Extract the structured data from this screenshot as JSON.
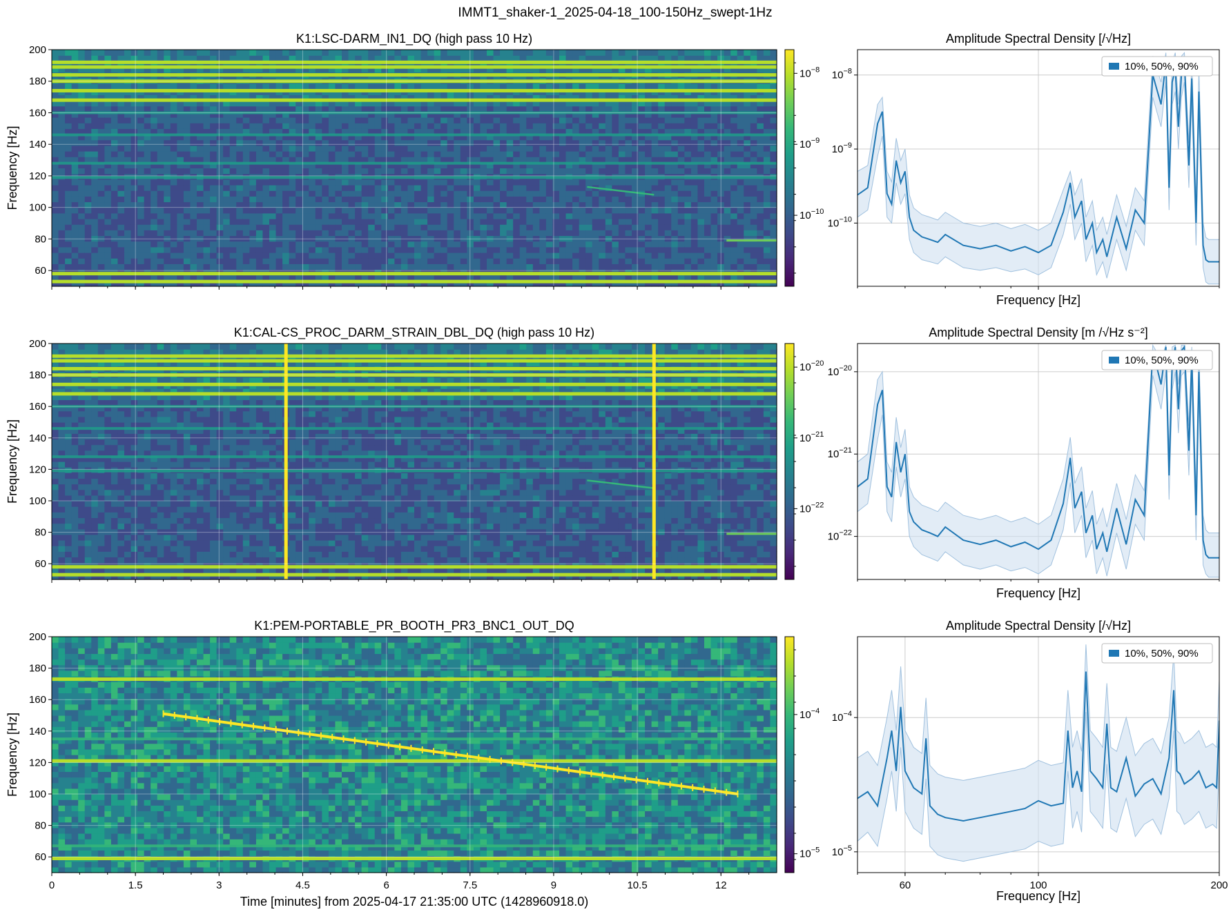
{
  "figure": {
    "suptitle": "IMMT1_shaker-1_2025-04-18_100-150Hz_swept-1Hz"
  },
  "colors": {
    "viridis": [
      "#440154",
      "#482878",
      "#3e4a89",
      "#31688e",
      "#26828e",
      "#1f9e89",
      "#35b779",
      "#6ece58",
      "#b5de2b",
      "#fde725"
    ],
    "asd_line": "#1f77b4",
    "asd_band": "#cfe0f0",
    "grid": "#cccccc",
    "sweep_marker": "#fde725"
  },
  "chart_data": [
    {
      "type": "heatmap",
      "panel": 1,
      "title": "K1:LSC-DARM_IN1_DQ (high pass 10 Hz)",
      "xlabel": "",
      "ylabel": "Frequency [Hz]",
      "xlim": [
        0,
        13
      ],
      "ylim": [
        50,
        200
      ],
      "xticks": [
        0,
        1.5,
        3,
        4.5,
        6,
        7.5,
        9,
        10.5,
        12
      ],
      "yticks": [
        60,
        80,
        100,
        120,
        140,
        160,
        180,
        200
      ],
      "xtick_labels": [
        "",
        "",
        "",
        "",
        "",
        "",
        "",
        "",
        ""
      ],
      "ytick_labels": [
        "60",
        "80",
        "100",
        "120",
        "140",
        "160",
        "180",
        "200"
      ],
      "colorbar": {
        "scale": "log",
        "ticks": [
          "10^{-8}",
          "10^{-9}",
          "10^{-10}"
        ]
      },
      "bright_lines_hz": [
        53,
        58,
        168,
        174,
        180,
        184,
        189,
        192
      ],
      "moderate_lines_hz": [
        119,
        128,
        146,
        160
      ],
      "faint_sweep": {
        "t": [
          9.6,
          10.8
        ],
        "f": [
          113,
          108
        ]
      },
      "late_line": {
        "t": [
          12.1,
          13
        ],
        "f": 79
      },
      "vertical_artifacts_min": []
    },
    {
      "type": "heatmap",
      "panel": 2,
      "title": "K1:CAL-CS_PROC_DARM_STRAIN_DBL_DQ (high pass 10 Hz)",
      "xlabel": "",
      "ylabel": "Frequency [Hz]",
      "xlim": [
        0,
        13
      ],
      "ylim": [
        50,
        200
      ],
      "xticks": [
        0,
        1.5,
        3,
        4.5,
        6,
        7.5,
        9,
        10.5,
        12
      ],
      "yticks": [
        60,
        80,
        100,
        120,
        140,
        160,
        180,
        200
      ],
      "xtick_labels": [
        "",
        "",
        "",
        "",
        "",
        "",
        "",
        "",
        ""
      ],
      "ytick_labels": [
        "60",
        "80",
        "100",
        "120",
        "140",
        "160",
        "180",
        "200"
      ],
      "colorbar": {
        "scale": "log",
        "ticks": [
          "10^{-20}",
          "10^{-21}",
          "10^{-22}"
        ]
      },
      "bright_lines_hz": [
        53,
        58,
        168,
        174,
        180,
        184,
        189,
        192
      ],
      "moderate_lines_hz": [
        119,
        128,
        146,
        160
      ],
      "faint_sweep": {
        "t": [
          9.6,
          10.8
        ],
        "f": [
          113,
          108
        ]
      },
      "late_line": {
        "t": [
          12.1,
          13
        ],
        "f": 79
      },
      "vertical_artifacts_min": [
        4.2,
        10.8
      ]
    },
    {
      "type": "heatmap",
      "panel": 3,
      "title": "K1:PEM-PORTABLE_PR_BOOTH_PR3_BNC1_OUT_DQ",
      "xlabel": "Time [minutes] from 2025-04-17 21:35:00 UTC (1428960918.0)",
      "ylabel": "Frequency [Hz]",
      "xlim": [
        0,
        13
      ],
      "ylim": [
        50,
        200
      ],
      "xticks": [
        0,
        1.5,
        3,
        4.5,
        6,
        7.5,
        9,
        10.5,
        12
      ],
      "yticks": [
        60,
        80,
        100,
        120,
        140,
        160,
        180,
        200
      ],
      "xtick_labels": [
        "0",
        "1.5",
        "3",
        "4.5",
        "6",
        "7.5",
        "9",
        "10.5",
        "12"
      ],
      "ytick_labels": [
        "60",
        "80",
        "100",
        "120",
        "140",
        "160",
        "180",
        "200"
      ],
      "colorbar": {
        "scale": "log",
        "ticks": [
          "10^{-4}",
          "10^{-5}"
        ]
      },
      "bright_lines_hz": [
        59,
        121,
        173
      ],
      "moderate_lines_hz": [
        135,
        67
      ],
      "sweep": {
        "t_start": 2.0,
        "t_end": 12.3,
        "f_start": 151,
        "f_end": 100,
        "step_hz": 1
      }
    },
    {
      "type": "line",
      "panel": 4,
      "title": "Amplitude Spectral Density [/√Hz]",
      "xlabel": "Frequency [Hz]",
      "xscale": "log",
      "yscale": "log",
      "xlim": [
        50,
        200
      ],
      "ylim": [
        1.4e-11,
        2.2e-08
      ],
      "xticks": [
        100
      ],
      "xtick_labels": [
        ""
      ],
      "yticks": [
        1e-10,
        1e-09,
        1e-08
      ],
      "ytick_labels": [
        "10^{-10}",
        "10^{-9}",
        "10^{-8}"
      ],
      "legend": {
        "label": "10%, 50%, 90%",
        "loc": "upper right"
      },
      "x": [
        50,
        52,
        54,
        55,
        56,
        57,
        58,
        59,
        60,
        61,
        62,
        64,
        66,
        68,
        70,
        75,
        80,
        85,
        90,
        95,
        100,
        105,
        110,
        113,
        115,
        118,
        120,
        123,
        125,
        128,
        130,
        135,
        140,
        145,
        150,
        155,
        160,
        163,
        165,
        167,
        169,
        171,
        173,
        175,
        178,
        180,
        183,
        185,
        188,
        190,
        192,
        195,
        198,
        200
      ],
      "median": [
        2.4e-10,
        3e-10,
        2.2e-09,
        3.2e-09,
        2.5e-10,
        1.8e-10,
        7e-10,
        3.5e-10,
        5e-10,
        1.2e-10,
        8e-11,
        6.5e-11,
        6e-11,
        5.5e-11,
        7e-11,
        5e-11,
        4.5e-11,
        5e-11,
        4.2e-11,
        4.8e-11,
        4e-11,
        5e-11,
        1.4e-10,
        3.5e-10,
        1.2e-10,
        2e-10,
        6e-11,
        1e-10,
        4e-11,
        6e-11,
        3.5e-11,
        1.2e-10,
        4.5e-11,
        1.5e-10,
        1e-10,
        1e-08,
        4e-09,
        1.5e-08,
        3e-10,
        8e-09,
        1.2e-08,
        2e-09,
        1e-08,
        1.5e-08,
        6e-10,
        9e-09,
        1e-10,
        6e-09,
        5e-11,
        3.2e-11,
        3e-11,
        3e-11,
        3e-11,
        3e-11
      ],
      "p10": [
        1.2e-10,
        1.5e-10,
        8e-10,
        1.5e-09,
        1.2e-10,
        1e-10,
        3.5e-10,
        1.8e-10,
        2.5e-10,
        6e-11,
        4e-11,
        3.2e-11,
        3e-11,
        2.8e-11,
        3.5e-11,
        2.5e-11,
        2.3e-11,
        2.5e-11,
        2.2e-11,
        2.4e-11,
        2e-11,
        2.5e-11,
        7e-11,
        1.8e-10,
        6e-11,
        1e-10,
        3e-11,
        5e-11,
        2e-11,
        3e-11,
        1.8e-11,
        6e-11,
        2.3e-11,
        8e-11,
        5e-11,
        5e-09,
        2e-09,
        8e-09,
        1.5e-10,
        4e-09,
        6e-09,
        1e-09,
        5e-09,
        8e-09,
        3e-10,
        4.5e-09,
        5e-11,
        3e-09,
        2.5e-11,
        1.6e-11,
        1.5e-11,
        1.5e-11,
        1.5e-11,
        1.5e-11
      ],
      "p90": [
        5e-10,
        6e-10,
        4e-09,
        5e-09,
        5e-10,
        3.6e-10,
        1.4e-09,
        7e-10,
        1e-09,
        2.4e-10,
        1.6e-10,
        1.3e-10,
        1.2e-10,
        1.1e-10,
        1.4e-10,
        1e-10,
        9e-11,
        1e-10,
        8.4e-11,
        9.6e-11,
        8e-11,
        1e-10,
        2.8e-10,
        5e-10,
        2.4e-10,
        4e-10,
        1.2e-10,
        2e-10,
        8e-11,
        1.2e-10,
        7e-11,
        2.4e-10,
        9e-11,
        3e-10,
        2e-10,
        1.8e-08,
        8e-09,
        2e-08,
        6e-10,
        1.5e-08,
        2e-08,
        4e-09,
        1.8e-08,
        2e-08,
        1.2e-09,
        1.6e-08,
        2e-10,
        1.2e-08,
        1e-10,
        6.4e-11,
        6e-11,
        6e-11,
        6e-11,
        6e-11
      ]
    },
    {
      "type": "line",
      "panel": 5,
      "title": "Amplitude Spectral Density [m /√Hz s⁻²]",
      "xlabel": "Frequency [Hz]",
      "xscale": "log",
      "yscale": "log",
      "xlim": [
        50,
        200
      ],
      "ylim": [
        3e-23,
        2.2e-20
      ],
      "xticks": [
        100
      ],
      "xtick_labels": [
        ""
      ],
      "yticks": [
        1e-22,
        1e-21,
        1e-20
      ],
      "ytick_labels": [
        "10^{-22}",
        "10^{-21}",
        "10^{-20}"
      ],
      "legend": {
        "label": "10%, 50%, 90%",
        "loc": "upper right"
      },
      "x": [
        50,
        52,
        54,
        55,
        56,
        57,
        58,
        59,
        60,
        61,
        62,
        64,
        66,
        68,
        70,
        75,
        80,
        85,
        90,
        95,
        100,
        105,
        110,
        113,
        115,
        118,
        120,
        123,
        125,
        128,
        130,
        135,
        140,
        145,
        150,
        155,
        160,
        163,
        165,
        167,
        169,
        171,
        173,
        175,
        178,
        180,
        183,
        185,
        188,
        190,
        192,
        195,
        198,
        200
      ],
      "median": [
        4e-22,
        5e-22,
        4e-21,
        6e-21,
        4e-22,
        3e-22,
        1.4e-21,
        6e-22,
        1e-21,
        2e-22,
        1.5e-22,
        1.2e-22,
        1.1e-22,
        1e-22,
        1.3e-22,
        9e-23,
        8e-23,
        9e-23,
        7.5e-23,
        8.5e-23,
        7e-23,
        9e-23,
        2.5e-22,
        9e-22,
        2.2e-22,
        3.5e-22,
        1.1e-22,
        1.8e-22,
        7e-23,
        1.1e-22,
        6.5e-23,
        2.2e-22,
        8e-23,
        2.8e-22,
        1.8e-22,
        1.8e-20,
        7e-21,
        2e-20,
        5.5e-22,
        1.2e-20,
        2e-20,
        3.5e-21,
        1.8e-20,
        2e-20,
        1.1e-21,
        1.5e-20,
        1.8e-22,
        1e-20,
        9e-23,
        6e-23,
        5.5e-23,
        5.5e-23,
        5.5e-23,
        5.5e-23
      ],
      "p10": [
        2e-22,
        2.5e-22,
        1.5e-21,
        3e-21,
        2e-22,
        1.5e-22,
        7e-22,
        3e-22,
        5e-22,
        1e-22,
        7.5e-23,
        6e-23,
        5.5e-23,
        5e-23,
        6.5e-23,
        4.5e-23,
        4e-23,
        4.5e-23,
        3.8e-23,
        4.2e-23,
        3.5e-23,
        4.5e-23,
        1.2e-22,
        4.5e-22,
        1.1e-22,
        1.8e-22,
        5.5e-23,
        9e-23,
        3.5e-23,
        5.5e-23,
        3.3e-23,
        1.1e-22,
        4e-23,
        1.4e-22,
        9e-23,
        9e-21,
        3.5e-21,
        1e-20,
        2.8e-22,
        6e-21,
        1e-20,
        1.8e-21,
        9e-21,
        1e-20,
        5.5e-22,
        7.5e-21,
        9e-23,
        5e-21,
        4.5e-23,
        3.5e-23,
        3.2e-23,
        3.2e-23,
        3.2e-23,
        3.2e-23
      ],
      "p90": [
        8e-22,
        1e-21,
        8e-21,
        1e-20,
        8e-22,
        6e-22,
        2.8e-21,
        1.2e-21,
        2e-21,
        4e-22,
        3e-22,
        2.4e-22,
        2.2e-22,
        2e-22,
        2.6e-22,
        1.8e-22,
        1.6e-22,
        1.8e-22,
        1.5e-22,
        1.7e-22,
        1.4e-22,
        1.8e-22,
        5e-22,
        1.6e-21,
        4.4e-22,
        7e-22,
        2.2e-22,
        3.6e-22,
        1.4e-22,
        2.2e-22,
        1.3e-22,
        4.4e-22,
        1.6e-22,
        5.6e-22,
        3.6e-22,
        2.1e-20,
        1.4e-20,
        2.1e-20,
        1.1e-21,
        2e-20,
        2.1e-20,
        7e-21,
        2.1e-20,
        2.1e-20,
        2.2e-21,
        2e-20,
        3.6e-22,
        1.8e-20,
        1.8e-22,
        1.2e-22,
        1.1e-22,
        1.1e-22,
        1.1e-22,
        1.1e-22
      ]
    },
    {
      "type": "line",
      "panel": 6,
      "title": "Amplitude Spectral Density [/√Hz]",
      "xlabel": "Frequency [Hz]",
      "xscale": "log",
      "yscale": "log",
      "xlim": [
        50,
        200
      ],
      "ylim": [
        7e-06,
        0.0004
      ],
      "xticks": [
        60,
        100,
        200
      ],
      "xtick_labels": [
        "60",
        "100",
        "200"
      ],
      "yticks": [
        1e-05,
        0.0001
      ],
      "ytick_labels": [
        "10^{-5}",
        "10^{-4}"
      ],
      "legend": {
        "label": "10%, 50%, 90%",
        "loc": "upper right"
      },
      "x": [
        50,
        52,
        54,
        56,
        57,
        58,
        59,
        60,
        62,
        64,
        65,
        66,
        68,
        70,
        75,
        80,
        85,
        90,
        95,
        100,
        105,
        110,
        112,
        114,
        116,
        118,
        120,
        122,
        125,
        128,
        130,
        132,
        135,
        140,
        145,
        150,
        155,
        160,
        165,
        168,
        170,
        172,
        175,
        180,
        185,
        190,
        195,
        198,
        200
      ],
      "median": [
        2.5e-05,
        2.8e-05,
        2.2e-05,
        5e-05,
        8e-05,
        4e-05,
        0.00012,
        4e-05,
        3e-05,
        2.7e-05,
        7e-05,
        2.2e-05,
        1.9e-05,
        1.8e-05,
        1.7e-05,
        1.8e-05,
        1.9e-05,
        2e-05,
        2.1e-05,
        2.4e-05,
        2.2e-05,
        2.3e-05,
        8e-05,
        3e-05,
        4e-05,
        2.8e-05,
        0.00022,
        4e-05,
        3.5e-05,
        3e-05,
        9e-05,
        3e-05,
        2.8e-05,
        5e-05,
        2.6e-05,
        3.2e-05,
        3.5e-05,
        2.7e-05,
        5e-05,
        0.00016,
        4e-05,
        3.8e-05,
        3.2e-05,
        3.5e-05,
        4e-05,
        3e-05,
        3.2e-05,
        3e-05,
        9.5e-05
      ],
      "p10": [
        1.2e-05,
        1.4e-05,
        1.1e-05,
        2.5e-05,
        4e-05,
        2e-05,
        6e-05,
        2e-05,
        1.5e-05,
        1.35e-05,
        3.5e-05,
        1.1e-05,
        9.5e-06,
        9e-06,
        8.5e-06,
        9e-06,
        9.5e-06,
        1e-05,
        1.05e-05,
        1.2e-05,
        1.1e-05,
        1.15e-05,
        4e-05,
        1.5e-05,
        2e-05,
        1.4e-05,
        0.00011,
        2e-05,
        1.75e-05,
        1.5e-05,
        4.5e-05,
        1.5e-05,
        1.4e-05,
        2.5e-05,
        1.3e-05,
        1.6e-05,
        1.75e-05,
        1.35e-05,
        2.5e-05,
        8e-05,
        2e-05,
        1.9e-05,
        1.6e-05,
        1.75e-05,
        2e-05,
        1.5e-05,
        1.6e-05,
        1.5e-05,
        4.75e-05
      ],
      "p90": [
        5e-05,
        5.6e-05,
        4.4e-05,
        0.0001,
        0.00016,
        8e-05,
        0.00024,
        8e-05,
        6e-05,
        5.4e-05,
        0.00014,
        4.4e-05,
        3.8e-05,
        3.6e-05,
        3.4e-05,
        3.6e-05,
        3.8e-05,
        4e-05,
        4.2e-05,
        4.8e-05,
        4.4e-05,
        4.6e-05,
        0.00016,
        6e-05,
        8e-05,
        5.6e-05,
        0.00035,
        8e-05,
        7e-05,
        6e-05,
        0.00018,
        6e-05,
        5.6e-05,
        0.0001,
        5.2e-05,
        6.4e-05,
        7e-05,
        5.4e-05,
        0.0001,
        0.0003,
        8e-05,
        7.6e-05,
        6.4e-05,
        7e-05,
        8e-05,
        6e-05,
        6.4e-05,
        6e-05,
        0.00019
      ]
    }
  ]
}
